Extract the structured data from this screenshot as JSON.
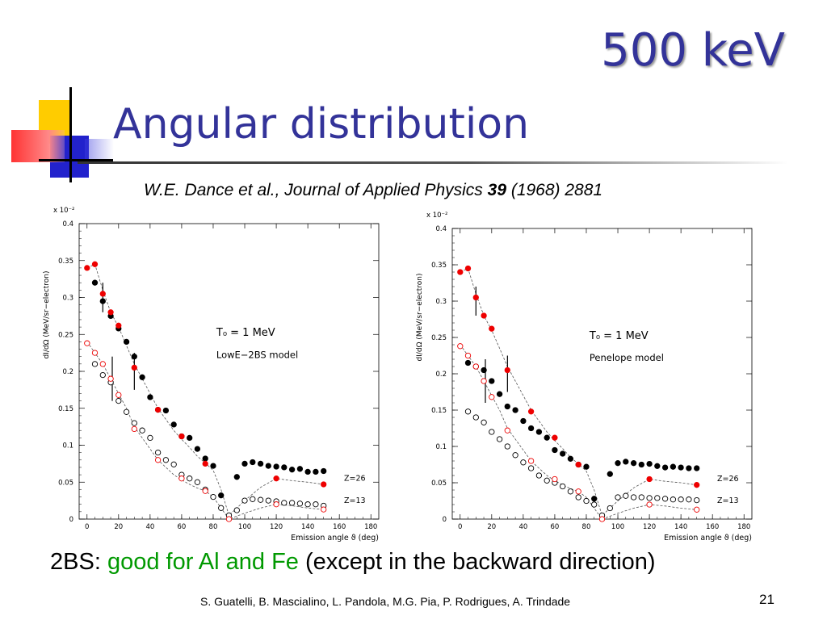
{
  "slide": {
    "title_top": "500 keV",
    "title_main": "Angular distribution",
    "citation": {
      "authors": "W.E. Dance et al., Journal of Applied Physics ",
      "volume": "39",
      "rest": " (1968) 2881"
    },
    "summary": {
      "prefix": "2BS: ",
      "highlight": "good for Al and Fe",
      "rest": " (except in the backward direction)"
    },
    "authors_footer": "S. Guatelli, B. Mascialino, L. Pandola, M.G. Pia, P. Rodrigues, A. Trindade",
    "page_number": "21"
  },
  "colors": {
    "title": "#333399",
    "highlight": "#009900",
    "simulation": "#ee0000",
    "experiment": "#000000"
  },
  "chart_data": [
    {
      "type": "scatter",
      "panel": "left",
      "annotation_energy": "T₀ = 1 MeV",
      "annotation_model": "LowE−2BS model",
      "exponent_label": "x 10⁻²",
      "xlabel": "Emission angle ϑ (deg)",
      "ylabel": "dI/dΩ (MeV/sr−electron)",
      "xlim": [
        -5,
        185
      ],
      "ylim": [
        0,
        0.4
      ],
      "x_ticks": [
        0,
        20,
        40,
        60,
        80,
        100,
        120,
        140,
        160,
        180
      ],
      "y_ticks": [
        0,
        0.05,
        0.1,
        0.15,
        0.2,
        0.25,
        0.3,
        0.35,
        0.4
      ],
      "y_tick_labels": [
        "0",
        "0.05",
        "0.1",
        "0.15",
        "0.2",
        "0.25",
        "0.3",
        "0.35",
        "0.4"
      ],
      "curve_labels": [
        {
          "text": "Z=26",
          "x": 163,
          "y": 0.052
        },
        {
          "text": "Z=13",
          "x": 163,
          "y": 0.022
        }
      ],
      "series": [
        {
          "marker": "filled-black",
          "x": [
            5,
            10,
            15,
            20,
            25,
            30,
            35,
            40,
            45,
            50,
            55,
            60,
            65,
            70,
            75,
            80,
            85,
            95,
            100,
            105,
            110,
            115,
            120,
            125,
            130,
            135,
            140,
            145,
            150
          ],
          "y": [
            0.32,
            0.295,
            0.275,
            0.258,
            0.24,
            0.22,
            0.192,
            0.165,
            0.148,
            0.147,
            0.128,
            0.112,
            0.11,
            0.095,
            0.082,
            0.072,
            0.032,
            0.057,
            0.075,
            0.077,
            0.075,
            0.072,
            0.071,
            0.07,
            0.067,
            0.068,
            0.064,
            0.064,
            0.065
          ]
        },
        {
          "marker": "filled-red",
          "x": [
            0,
            5,
            10,
            15,
            20,
            30,
            45,
            60,
            75,
            120,
            150
          ],
          "y": [
            0.34,
            0.345,
            0.305,
            0.28,
            0.262,
            0.205,
            0.148,
            0.112,
            0.075,
            0.055,
            0.047
          ]
        },
        {
          "marker": "open-black",
          "x": [
            5,
            10,
            15,
            20,
            25,
            30,
            35,
            40,
            45,
            50,
            55,
            60,
            65,
            70,
            75,
            80,
            85,
            90,
            95,
            100,
            105,
            110,
            115,
            120,
            125,
            130,
            135,
            140,
            145,
            150
          ],
          "y": [
            0.21,
            0.195,
            0.185,
            0.16,
            0.145,
            0.13,
            0.12,
            0.11,
            0.09,
            0.08,
            0.074,
            0.06,
            0.055,
            0.05,
            0.04,
            0.03,
            0.015,
            0.005,
            0.012,
            0.025,
            0.027,
            0.026,
            0.025,
            0.024,
            0.022,
            0.022,
            0.021,
            0.02,
            0.02,
            0.018
          ]
        },
        {
          "marker": "open-red",
          "x": [
            0,
            5,
            10,
            15,
            20,
            30,
            45,
            60,
            75,
            90,
            120,
            150
          ],
          "y": [
            0.238,
            0.225,
            0.21,
            0.19,
            0.168,
            0.122,
            0.08,
            0.055,
            0.038,
            0.0,
            0.02,
            0.013
          ]
        }
      ],
      "curves": [
        {
          "x": [
            0,
            5,
            10,
            15,
            20,
            25,
            30,
            35,
            40,
            45,
            50,
            55,
            60,
            65,
            70,
            75,
            80,
            85,
            90,
            100,
            110,
            120,
            130,
            140,
            150
          ],
          "y": [
            0.34,
            0.345,
            0.31,
            0.28,
            0.26,
            0.235,
            0.21,
            0.19,
            0.17,
            0.15,
            0.135,
            0.12,
            0.108,
            0.097,
            0.085,
            0.076,
            0.066,
            0.04,
            0.005,
            0.025,
            0.043,
            0.055,
            0.052,
            0.05,
            0.047
          ]
        },
        {
          "x": [
            0,
            5,
            10,
            15,
            20,
            25,
            30,
            35,
            40,
            45,
            50,
            55,
            60,
            65,
            70,
            75,
            80,
            85,
            90,
            100,
            110,
            120,
            130,
            140,
            150
          ],
          "y": [
            0.24,
            0.225,
            0.21,
            0.19,
            0.17,
            0.15,
            0.125,
            0.11,
            0.095,
            0.08,
            0.07,
            0.06,
            0.053,
            0.047,
            0.042,
            0.038,
            0.03,
            0.015,
            0.0,
            0.008,
            0.015,
            0.02,
            0.018,
            0.015,
            0.013
          ]
        }
      ],
      "error_bars": [
        {
          "x": 10,
          "low": 0.28,
          "high": 0.32
        },
        {
          "x": 16,
          "low": 0.16,
          "high": 0.22
        },
        {
          "x": 30,
          "low": 0.175,
          "high": 0.225
        }
      ]
    },
    {
      "type": "scatter",
      "panel": "right",
      "annotation_energy": "T₀ = 1 MeV",
      "annotation_model": "Penelope model",
      "exponent_label": "x 10⁻²",
      "xlabel": "Emission angle ϑ (deg)",
      "ylabel": "dI/dΩ (MeV/sr−electron)",
      "xlim": [
        -5,
        185
      ],
      "ylim": [
        0,
        0.4
      ],
      "x_ticks": [
        0,
        20,
        40,
        60,
        80,
        100,
        120,
        140,
        160,
        180
      ],
      "y_ticks": [
        0,
        0.05,
        0.1,
        0.15,
        0.2,
        0.25,
        0.3,
        0.35,
        0.4
      ],
      "y_tick_labels": [
        "0",
        "0.05",
        "0.1",
        "0.15",
        "0.2",
        "0.25",
        "0.3",
        "0.35",
        "0.4"
      ],
      "curve_labels": [
        {
          "text": "Z=26",
          "x": 163,
          "y": 0.052
        },
        {
          "text": "Z=13",
          "x": 163,
          "y": 0.022
        }
      ],
      "series": [
        {
          "marker": "filled-black",
          "x": [
            5,
            10,
            15,
            20,
            25,
            30,
            35,
            40,
            45,
            50,
            55,
            60,
            65,
            70,
            75,
            80,
            85,
            95,
            100,
            105,
            110,
            115,
            120,
            125,
            130,
            135,
            140,
            145,
            150
          ],
          "y": [
            0.215,
            0.21,
            0.205,
            0.19,
            0.172,
            0.155,
            0.15,
            0.135,
            0.125,
            0.12,
            0.112,
            0.095,
            0.09,
            0.083,
            0.075,
            0.072,
            0.028,
            0.062,
            0.077,
            0.079,
            0.077,
            0.075,
            0.076,
            0.073,
            0.071,
            0.072,
            0.071,
            0.07,
            0.07
          ]
        },
        {
          "marker": "filled-red",
          "x": [
            0,
            5,
            10,
            15,
            20,
            30,
            45,
            60,
            75,
            120,
            150
          ],
          "y": [
            0.34,
            0.345,
            0.305,
            0.28,
            0.262,
            0.205,
            0.148,
            0.112,
            0.075,
            0.055,
            0.047
          ]
        },
        {
          "marker": "open-black",
          "x": [
            5,
            10,
            15,
            20,
            25,
            30,
            35,
            40,
            45,
            50,
            55,
            60,
            65,
            70,
            75,
            80,
            85,
            90,
            95,
            100,
            105,
            110,
            115,
            120,
            125,
            130,
            135,
            140,
            145,
            150
          ],
          "y": [
            0.148,
            0.14,
            0.133,
            0.12,
            0.11,
            0.1,
            0.088,
            0.078,
            0.07,
            0.06,
            0.053,
            0.05,
            0.045,
            0.038,
            0.03,
            0.025,
            0.02,
            0.005,
            0.015,
            0.03,
            0.032,
            0.03,
            0.03,
            0.029,
            0.029,
            0.028,
            0.027,
            0.027,
            0.027,
            0.026
          ]
        },
        {
          "marker": "open-red",
          "x": [
            0,
            5,
            10,
            15,
            20,
            30,
            45,
            60,
            75,
            90,
            120,
            150
          ],
          "y": [
            0.238,
            0.225,
            0.21,
            0.19,
            0.168,
            0.122,
            0.08,
            0.055,
            0.038,
            0.0,
            0.02,
            0.013
          ]
        }
      ],
      "curves": [
        {
          "x": [
            0,
            5,
            10,
            15,
            20,
            25,
            30,
            35,
            40,
            45,
            50,
            55,
            60,
            65,
            70,
            75,
            80,
            85,
            90,
            100,
            110,
            120,
            130,
            140,
            150
          ],
          "y": [
            0.34,
            0.345,
            0.31,
            0.28,
            0.26,
            0.235,
            0.21,
            0.19,
            0.17,
            0.15,
            0.135,
            0.12,
            0.108,
            0.097,
            0.085,
            0.076,
            0.066,
            0.04,
            0.005,
            0.025,
            0.043,
            0.055,
            0.052,
            0.05,
            0.047
          ]
        },
        {
          "x": [
            0,
            5,
            10,
            15,
            20,
            25,
            30,
            35,
            40,
            45,
            50,
            55,
            60,
            65,
            70,
            75,
            80,
            85,
            90,
            100,
            110,
            120,
            130,
            140,
            150
          ],
          "y": [
            0.24,
            0.225,
            0.21,
            0.19,
            0.17,
            0.15,
            0.125,
            0.11,
            0.095,
            0.08,
            0.07,
            0.06,
            0.053,
            0.047,
            0.042,
            0.038,
            0.03,
            0.015,
            0.0,
            0.008,
            0.015,
            0.02,
            0.018,
            0.015,
            0.013
          ]
        }
      ],
      "error_bars": [
        {
          "x": 10,
          "low": 0.28,
          "high": 0.32
        },
        {
          "x": 16,
          "low": 0.16,
          "high": 0.22
        },
        {
          "x": 30,
          "low": 0.175,
          "high": 0.225
        }
      ]
    }
  ]
}
